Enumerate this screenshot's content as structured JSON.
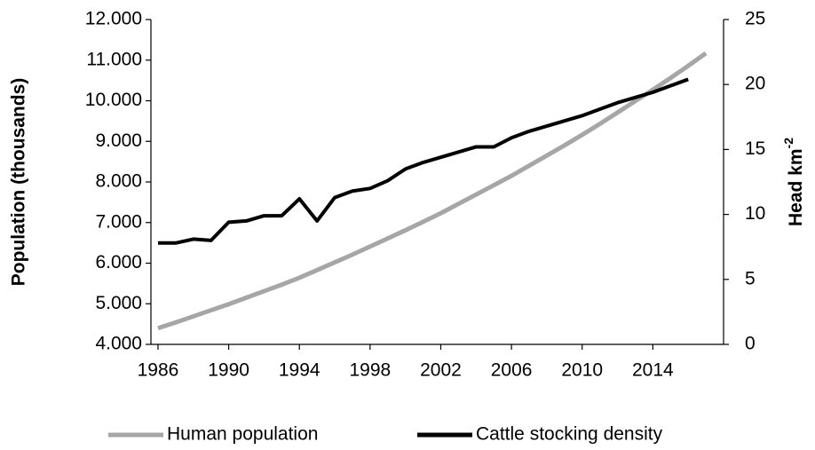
{
  "chart_data": {
    "type": "line",
    "ylabel": "Population (thousands)",
    "y2label": "Head km",
    "y2label_sup": "-2",
    "xlim": [
      1985.6,
      2018
    ],
    "xticks": [
      1986,
      1990,
      1994,
      1998,
      2002,
      2006,
      2010,
      2014
    ],
    "ylim": [
      4000,
      12000
    ],
    "yticks": [
      {
        "value": 4000,
        "label": "4.000"
      },
      {
        "value": 5000,
        "label": "5.000"
      },
      {
        "value": 6000,
        "label": "6.000"
      },
      {
        "value": 7000,
        "label": "7.000"
      },
      {
        "value": 8000,
        "label": "8.000"
      },
      {
        "value": 9000,
        "label": "9.000"
      },
      {
        "value": 10000,
        "label": "10.000"
      },
      {
        "value": 11000,
        "label": "11.000"
      },
      {
        "value": 12000,
        "label": "12.000"
      }
    ],
    "y2lim": [
      0,
      25
    ],
    "y2ticks": [
      0,
      5,
      10,
      15,
      20,
      25
    ],
    "legend": "bottom",
    "series": [
      {
        "name": "Human population",
        "color": "#a6a6a6",
        "x": [
          1986,
          1987,
          1988,
          1989,
          1990,
          1991,
          1992,
          1993,
          1994,
          1995,
          1996,
          1997,
          1998,
          1999,
          2000,
          2001,
          2002,
          2003,
          2004,
          2005,
          2006,
          2007,
          2008,
          2009,
          2010,
          2011,
          2012,
          2013,
          2014,
          2015,
          2016,
          2017
        ],
        "values": [
          4400,
          4540,
          4690,
          4840,
          4990,
          5150,
          5310,
          5470,
          5640,
          5830,
          6020,
          6210,
          6410,
          6610,
          6810,
          7020,
          7230,
          7460,
          7690,
          7920,
          8150,
          8400,
          8650,
          8900,
          9160,
          9430,
          9710,
          9990,
          10270,
          10560,
          10860,
          11170
        ]
      },
      {
        "name": "Cattle stocking density",
        "color": "#000000",
        "axis": "y2",
        "x": [
          1986,
          1987,
          1988,
          1989,
          1990,
          1991,
          1992,
          1993,
          1994,
          1995,
          1996,
          1997,
          1998,
          1999,
          2000,
          2001,
          2002,
          2003,
          2004,
          2005,
          2006,
          2007,
          2008,
          2009,
          2010,
          2011,
          2012,
          2013,
          2014,
          2015,
          2016
        ],
        "values": [
          7.8,
          7.8,
          8.1,
          8.0,
          9.4,
          9.5,
          9.9,
          9.9,
          11.2,
          9.5,
          11.3,
          11.8,
          12.0,
          12.6,
          13.5,
          14.0,
          14.4,
          14.8,
          15.2,
          15.2,
          15.9,
          16.4,
          16.8,
          17.2,
          17.6,
          18.1,
          18.6,
          19.0,
          19.4,
          19.9,
          20.4
        ]
      }
    ]
  }
}
